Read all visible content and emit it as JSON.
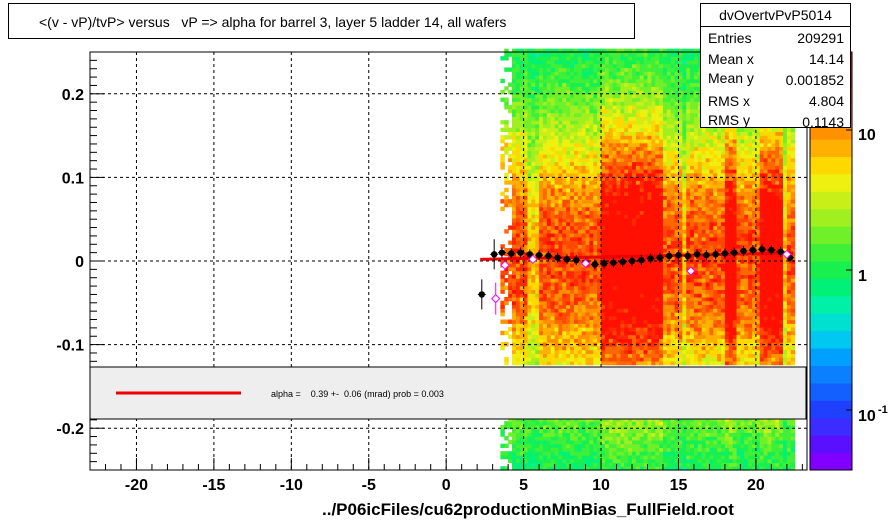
{
  "title": "<(v - vP)/tvP> versus   vP => alpha for barrel 3, layer 5 ladder 14, all wafers",
  "stats": {
    "name": "dvOvertvPvP5014",
    "rows": [
      {
        "label": "Entries",
        "value": "209291"
      },
      {
        "label": "Mean x",
        "value": "14.14"
      },
      {
        "label": "Mean y",
        "value": "0.001852"
      },
      {
        "label": "RMS x",
        "value": "4.804"
      },
      {
        "label": "RMS y",
        "value": "0.1143"
      }
    ]
  },
  "fit_label": "alpha =    0.39 +-  0.06 (mrad) prob = 0.003",
  "footer_file": "../P06icFiles/cu62productionMinBias_FullField.root",
  "colors": {
    "fit_line": "#ee0000",
    "profile_points": "#000000",
    "open_markers": "#ff00ff"
  },
  "chart_data": {
    "type": "heatmap",
    "title": "<(v - vP)/tvP> versus   vP => alpha for barrel 3, layer 5 ladder 14, all wafers",
    "xlim": [
      -23,
      23.3
    ],
    "ylim": [
      -0.25,
      0.25
    ],
    "x_ticks": [
      -20,
      -15,
      -10,
      -5,
      0,
      5,
      10,
      15,
      20
    ],
    "x_tick_labels": [
      "-20",
      "-15",
      "-10",
      "-5",
      "0",
      "5",
      "10",
      "15",
      "20"
    ],
    "y_ticks": [
      -0.2,
      -0.1,
      0,
      0.1,
      0.2
    ],
    "y_tick_labels": [
      "-0.2",
      "-0.1",
      "0",
      "0.1",
      "0.2"
    ],
    "grid": true,
    "z_scale": "log",
    "z_labels": [
      "10",
      "1",
      "10"
    ],
    "z_label_superscripts": [
      "",
      "",
      "-1"
    ],
    "occupied_x_range": [
      3.5,
      22.5
    ],
    "profile": {
      "x": [
        2.3,
        3.1,
        3.6,
        4.2,
        4.8,
        5.4,
        6.0,
        6.6,
        7.2,
        7.8,
        8.4,
        9.0,
        9.6,
        10.2,
        10.8,
        11.4,
        12.0,
        12.6,
        13.2,
        13.8,
        14.4,
        15.0,
        15.6,
        16.2,
        16.8,
        17.4,
        18.0,
        18.6,
        19.2,
        19.8,
        20.4,
        21.0,
        21.6,
        22.2
      ],
      "y": [
        -0.04,
        0.008,
        0.01,
        0.009,
        0.01,
        0.008,
        0.007,
        0.006,
        0.004,
        0.002,
        0.001,
        -0.002,
        -0.004,
        -0.003,
        -0.002,
        -0.001,
        0.0,
        0.001,
        0.003,
        0.004,
        0.006,
        0.007,
        0.006,
        0.008,
        0.007,
        0.008,
        0.009,
        0.01,
        0.012,
        0.013,
        0.014,
        0.013,
        0.011,
        0.004
      ]
    },
    "open_markers": {
      "x": [
        3.2,
        3.8,
        5.6,
        9.0,
        15.8,
        22.0
      ],
      "y": [
        -0.045,
        -0.005,
        0.002,
        -0.003,
        -0.012,
        0.008
      ]
    },
    "fit": {
      "x": [
        2.2,
        22.4
      ],
      "y": [
        0.002,
        0.0095
      ]
    }
  }
}
